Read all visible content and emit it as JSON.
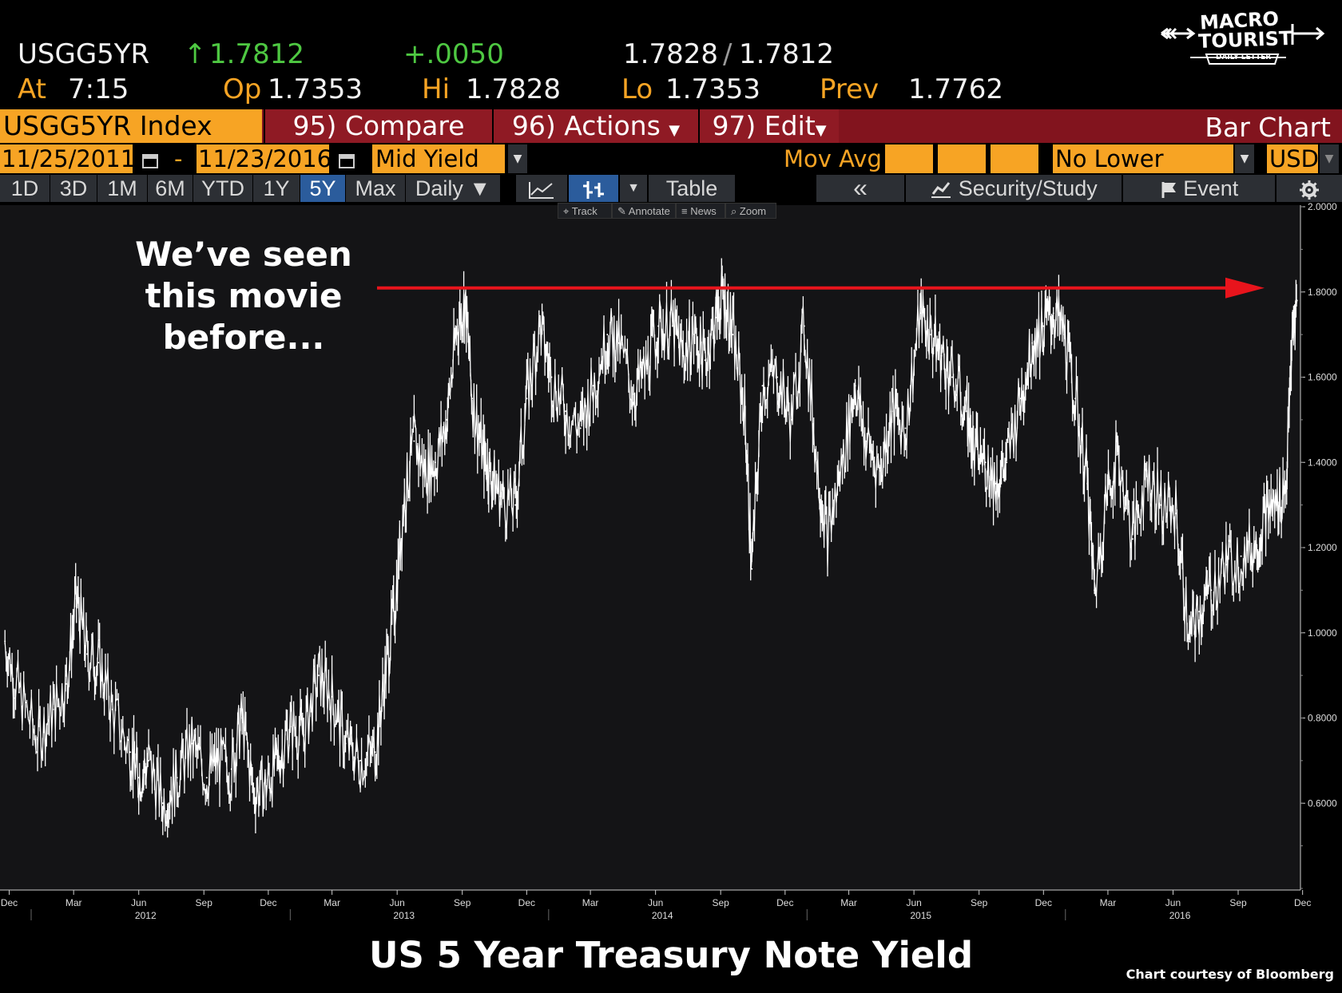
{
  "quote": {
    "ticker": "USGG5YR",
    "arrow": "↑",
    "last": "1.7812",
    "change": "+.0050",
    "bid": "1.7828",
    "ask": "1.7812",
    "at_label": "At",
    "time": "7:15",
    "open_label": "Op",
    "open": "1.7353",
    "high_label": "Hi",
    "high": "1.7828",
    "low_label": "Lo",
    "low": "1.7353",
    "prev_label": "Prev",
    "prev": "1.7762"
  },
  "logo": {
    "line1": "MACRO",
    "line2": "TOURIST",
    "line3": "DAILY LETTER"
  },
  "toolbar": {
    "security": "USGG5YR Index",
    "compare": "95) Compare",
    "actions": "96) Actions",
    "edit": "97) Edit",
    "chart_type": "Bar Chart"
  },
  "range": {
    "start": "11/25/2011",
    "sep": "-",
    "end": "11/23/2016",
    "field": "Mid Yield",
    "mov_avg": "Mov Avg",
    "lower": "No Lower Chart",
    "currency": "USD"
  },
  "tabs": [
    "1D",
    "3D",
    "1M",
    "6M",
    "YTD",
    "1Y",
    "5Y",
    "Max",
    "Daily ▼"
  ],
  "selected_tab": "5Y",
  "tools": {
    "table": "Table",
    "collapse": "«",
    "security_study": "Security/Study",
    "event": "Event"
  },
  "mini_tools": [
    "Track",
    "Annotate",
    "News",
    "Zoom"
  ],
  "annotation": "We’ve seen this movie before...",
  "title": "US 5 Year Treasury Note Yield",
  "credit": "Chart courtesy of Bloomberg",
  "colors": {
    "amber": "#f7a424",
    "green": "#4ec842",
    "menu_red": "#82141e",
    "tab_blue": "#2b5c9c",
    "arrow_red": "#e8141c",
    "price_line": "#ffffff"
  },
  "chart_data": {
    "type": "line",
    "series": [
      {
        "x": [
          "2011-11-25",
          "2011-12-15",
          "2012-01-10",
          "2012-02-01",
          "2012-02-20",
          "2012-03-05",
          "2012-03-20",
          "2012-04-05",
          "2012-04-25",
          "2012-05-20",
          "2012-06-01",
          "2012-06-15",
          "2012-07-05",
          "2012-07-25",
          "2012-08-15",
          "2012-09-05",
          "2012-09-20",
          "2012-10-10",
          "2012-10-25",
          "2012-11-10",
          "2012-11-28",
          "2012-12-15",
          "2013-01-01",
          "2013-01-20",
          "2013-02-10",
          "2013-03-01",
          "2013-03-20",
          "2013-04-10",
          "2013-05-01",
          "2013-05-15",
          "2013-05-28",
          "2013-06-10",
          "2013-06-25",
          "2013-07-10",
          "2013-07-25",
          "2013-08-10",
          "2013-08-25",
          "2013-09-05",
          "2013-09-15",
          "2013-09-30",
          "2013-10-10",
          "2013-10-25",
          "2013-11-15",
          "2013-12-01",
          "2013-12-20",
          "2014-01-05",
          "2014-01-25",
          "2014-02-15",
          "2014-03-05",
          "2014-03-25",
          "2014-04-10",
          "2014-05-01",
          "2014-05-20",
          "2014-06-05",
          "2014-06-25",
          "2014-07-10",
          "2014-07-25",
          "2014-08-10",
          "2014-08-25",
          "2014-09-05",
          "2014-09-18",
          "2014-10-05",
          "2014-10-15",
          "2014-10-30",
          "2014-11-20",
          "2014-12-10",
          "2014-12-28",
          "2015-01-15",
          "2015-01-30",
          "2015-02-20",
          "2015-03-10",
          "2015-03-25",
          "2015-04-15",
          "2015-05-01",
          "2015-05-20",
          "2015-06-10",
          "2015-06-25",
          "2015-07-10",
          "2015-07-25",
          "2015-08-15",
          "2015-08-24",
          "2015-09-10",
          "2015-09-25",
          "2015-10-10",
          "2015-10-30",
          "2015-11-15",
          "2015-12-01",
          "2015-12-15",
          "2015-12-30",
          "2016-01-15",
          "2016-02-01",
          "2016-02-11",
          "2016-02-28",
          "2016-03-15",
          "2016-04-05",
          "2016-04-25",
          "2016-05-15",
          "2016-06-05",
          "2016-06-24",
          "2016-07-08",
          "2016-07-25",
          "2016-08-15",
          "2016-09-05",
          "2016-09-25",
          "2016-10-10",
          "2016-10-25",
          "2016-11-08",
          "2016-11-15",
          "2016-11-23"
        ],
        "y": [
          0.98,
          0.86,
          0.75,
          0.82,
          0.88,
          1.08,
          0.95,
          0.93,
          0.82,
          0.72,
          0.66,
          0.7,
          0.6,
          0.66,
          0.74,
          0.66,
          0.7,
          0.68,
          0.8,
          0.63,
          0.64,
          0.7,
          0.78,
          0.76,
          0.9,
          0.85,
          0.74,
          0.7,
          0.72,
          0.9,
          1.05,
          1.3,
          1.45,
          1.38,
          1.4,
          1.5,
          1.72,
          1.78,
          1.55,
          1.42,
          1.38,
          1.32,
          1.3,
          1.55,
          1.72,
          1.6,
          1.52,
          1.48,
          1.58,
          1.7,
          1.68,
          1.56,
          1.62,
          1.72,
          1.72,
          1.65,
          1.7,
          1.64,
          1.74,
          1.8,
          1.7,
          1.52,
          1.15,
          1.58,
          1.6,
          1.5,
          1.72,
          1.4,
          1.22,
          1.4,
          1.58,
          1.45,
          1.38,
          1.52,
          1.48,
          1.75,
          1.7,
          1.65,
          1.6,
          1.52,
          1.42,
          1.4,
          1.35,
          1.4,
          1.55,
          1.68,
          1.72,
          1.75,
          1.7,
          1.55,
          1.35,
          1.1,
          1.32,
          1.42,
          1.22,
          1.38,
          1.3,
          1.28,
          0.98,
          1.05,
          1.1,
          1.16,
          1.18,
          1.2,
          1.28,
          1.3,
          1.35,
          1.65,
          1.78
        ]
      }
    ],
    "ylim": [
      0.4,
      2.0
    ],
    "yticks": [
      "2.0000",
      "1.8000",
      "1.6000",
      "1.4000",
      "1.2000",
      "1.0000",
      "0.8000",
      "0.6000"
    ],
    "xtick_labels": [
      "Dec",
      "Mar",
      "Jun",
      "Sep",
      "Dec",
      "Mar",
      "Jun",
      "Sep",
      "Dec",
      "Mar",
      "Jun",
      "Sep",
      "Dec",
      "Mar",
      "Jun",
      "Sep",
      "Dec",
      "Mar",
      "Jun",
      "Sep",
      "Dec"
    ],
    "year_labels": [
      "2012",
      "2013",
      "2014",
      "2015",
      "2016"
    ],
    "reference_line": {
      "y": 1.8
    },
    "grid": false
  }
}
